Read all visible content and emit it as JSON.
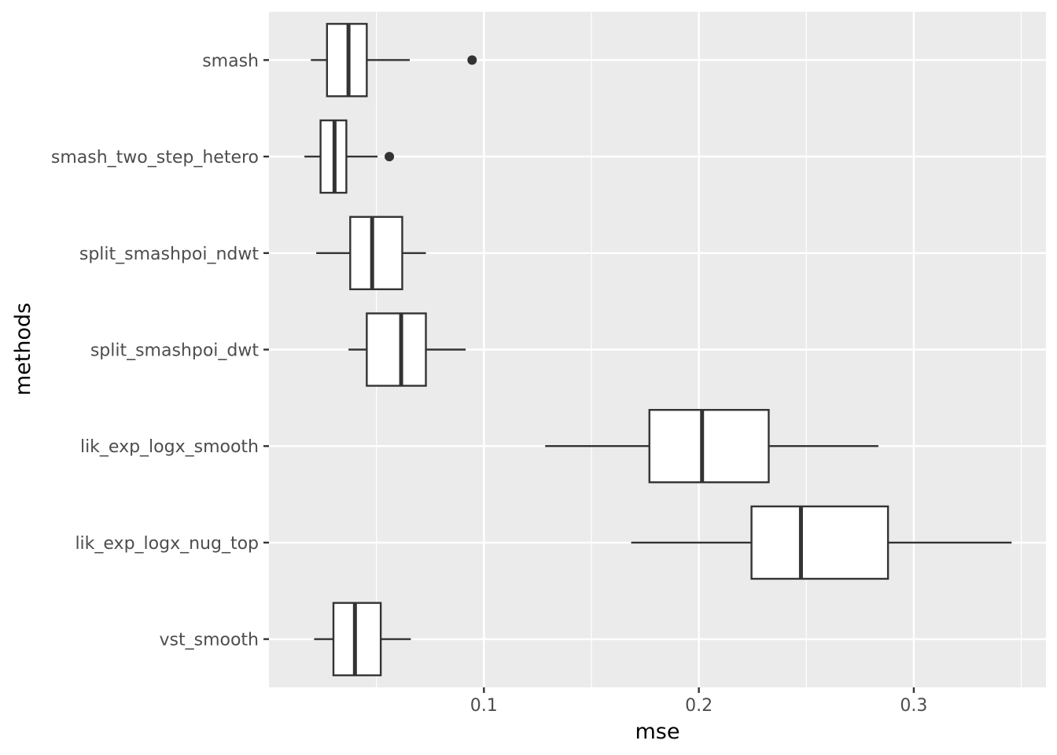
{
  "chart_data": {
    "type": "boxplot",
    "orientation": "horizontal",
    "xlabel": "mse",
    "ylabel": "methods",
    "xlim": [
      0.0,
      0.3615
    ],
    "x_ticks": [
      0.1,
      0.2,
      0.3
    ],
    "x_tick_labels": [
      "0.1",
      "0.2",
      "0.3"
    ],
    "x_minor_ticks": [
      0.05,
      0.15,
      0.25,
      0.35
    ],
    "grid": true,
    "colors": {
      "panel": "#ebebeb",
      "grid": "#ffffff",
      "box_fill": "#ffffff",
      "box_line": "#333333",
      "tick_label": "#4d4d4d",
      "axis_title": "#000000"
    },
    "categories": [
      "smash",
      "smash_two_step_hetero",
      "split_smashpoi_ndwt",
      "split_smashpoi_dwt",
      "lik_exp_logx_smooth",
      "lik_exp_logx_nug_top",
      "vst_smooth"
    ],
    "boxes": [
      {
        "name": "smash",
        "whisker_low": 0.0195,
        "q1": 0.027,
        "median": 0.037,
        "q3": 0.0455,
        "whisker_high": 0.0655,
        "outliers": [
          0.0945
        ]
      },
      {
        "name": "smash_two_step_hetero",
        "whisker_low": 0.0165,
        "q1": 0.024,
        "median": 0.0305,
        "q3": 0.036,
        "whisker_high": 0.0505,
        "outliers": [
          0.056
        ]
      },
      {
        "name": "split_smashpoi_ndwt",
        "whisker_low": 0.022,
        "q1": 0.0378,
        "median": 0.048,
        "q3": 0.062,
        "whisker_high": 0.073,
        "outliers": []
      },
      {
        "name": "split_smashpoi_dwt",
        "whisker_low": 0.037,
        "q1": 0.0455,
        "median": 0.0615,
        "q3": 0.073,
        "whisker_high": 0.0915,
        "outliers": []
      },
      {
        "name": "lik_exp_logx_smooth",
        "whisker_low": 0.1285,
        "q1": 0.177,
        "median": 0.2015,
        "q3": 0.2325,
        "whisker_high": 0.2835,
        "outliers": []
      },
      {
        "name": "lik_exp_logx_nug_top",
        "whisker_low": 0.1685,
        "q1": 0.2245,
        "median": 0.2475,
        "q3": 0.288,
        "whisker_high": 0.3455,
        "outliers": []
      },
      {
        "name": "vst_smooth",
        "whisker_low": 0.021,
        "q1": 0.03,
        "median": 0.04,
        "q3": 0.052,
        "whisker_high": 0.066,
        "outliers": []
      }
    ]
  }
}
